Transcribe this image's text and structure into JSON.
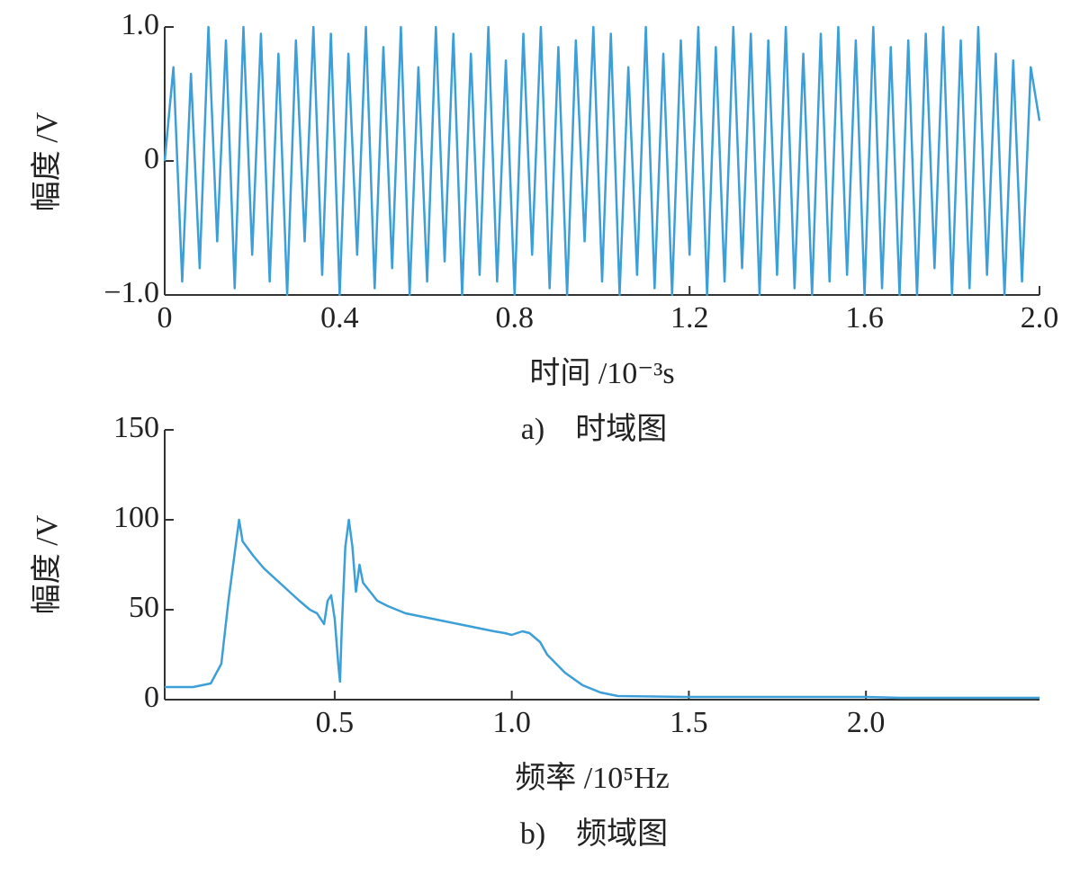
{
  "chart_data": [
    {
      "type": "line",
      "caption": "a)　时域图",
      "x_label": "时间 /10⁻³s",
      "y_label": "幅度 /V",
      "xlim": [
        0,
        2.0
      ],
      "ylim": [
        -1.0,
        1.0
      ],
      "xticks": [
        0,
        0.4,
        0.8,
        1.2,
        1.6,
        {
          "value": 2,
          "label": "2.0"
        }
      ],
      "yticks": [
        {
          "value": -1,
          "label": "−1.0"
        },
        0,
        {
          "value": 1,
          "label": "1.0"
        }
      ],
      "x": [
        0,
        0.02,
        0.04,
        0.06,
        0.08,
        0.1,
        0.12,
        0.14,
        0.16,
        0.18,
        0.2,
        0.22,
        0.24,
        0.26,
        0.28,
        0.3,
        0.32,
        0.34,
        0.36,
        0.38,
        0.4,
        0.42,
        0.44,
        0.46,
        0.48,
        0.5,
        0.52,
        0.54,
        0.56,
        0.58,
        0.6,
        0.62,
        0.64,
        0.66,
        0.68,
        0.7,
        0.72,
        0.74,
        0.76,
        0.78,
        0.8,
        0.82,
        0.84,
        0.86,
        0.88,
        0.9,
        0.92,
        0.94,
        0.96,
        0.98,
        1.0,
        1.02,
        1.04,
        1.06,
        1.08,
        1.1,
        1.12,
        1.14,
        1.16,
        1.18,
        1.2,
        1.22,
        1.24,
        1.26,
        1.28,
        1.3,
        1.32,
        1.34,
        1.36,
        1.38,
        1.4,
        1.42,
        1.44,
        1.46,
        1.48,
        1.5,
        1.52,
        1.54,
        1.56,
        1.58,
        1.6,
        1.62,
        1.64,
        1.66,
        1.68,
        1.7,
        1.72,
        1.74,
        1.76,
        1.78,
        1.8,
        1.82,
        1.84,
        1.86,
        1.88,
        1.9,
        1.92,
        1.94,
        1.96,
        1.98,
        2.0
      ],
      "series": [
        {
          "color": "#3d9fd8",
          "values": [
            0,
            0.7,
            -0.9,
            0.65,
            -0.8,
            1.0,
            -0.6,
            0.9,
            -0.95,
            1.0,
            -0.7,
            0.95,
            -0.9,
            0.8,
            -1.0,
            0.9,
            -0.6,
            1.0,
            -0.85,
            0.95,
            -1.0,
            0.8,
            -0.7,
            1.0,
            -0.95,
            0.85,
            -0.8,
            1.0,
            -1.0,
            0.7,
            -0.9,
            1.0,
            -0.75,
            0.95,
            -1.0,
            0.8,
            -0.85,
            1.0,
            -0.9,
            0.75,
            -1.0,
            0.95,
            -0.7,
            1.0,
            -0.95,
            0.85,
            -1.0,
            0.9,
            -0.6,
            1.0,
            -0.9,
            0.95,
            -1.0,
            0.7,
            -0.85,
            1.0,
            -0.95,
            0.8,
            -1.0,
            0.9,
            -0.7,
            1.0,
            -1.0,
            0.85,
            -0.9,
            1.0,
            -0.8,
            0.95,
            -1.0,
            0.9,
            -0.85,
            1.0,
            -0.95,
            0.8,
            -1.0,
            0.95,
            -0.9,
            1.0,
            -0.85,
            0.9,
            -1.0,
            1.0,
            -0.95,
            0.85,
            -1.0,
            0.9,
            -1.0,
            0.95,
            -0.8,
            1.0,
            -1.0,
            0.9,
            -0.95,
            1.0,
            -0.85,
            0.8,
            -1.0,
            0.75,
            -0.9,
            0.7,
            0.3
          ]
        }
      ]
    },
    {
      "type": "line",
      "caption": "b)　频域图",
      "x_label": "频率 /10⁵Hz",
      "y_label": "幅度 /V",
      "xlim": [
        0.02,
        2.49
      ],
      "ylim": [
        0,
        150
      ],
      "xticks": [
        0.5,
        {
          "value": 1,
          "label": "1.0"
        },
        1.5,
        {
          "value": 2,
          "label": "2.0"
        }
      ],
      "yticks": [
        0,
        50,
        100,
        150
      ],
      "x": [
        0.02,
        0.1,
        0.15,
        0.18,
        0.2,
        0.22,
        0.23,
        0.24,
        0.27,
        0.3,
        0.35,
        0.4,
        0.43,
        0.45,
        0.47,
        0.48,
        0.49,
        0.5,
        0.51,
        0.515,
        0.52,
        0.53,
        0.54,
        0.55,
        0.56,
        0.57,
        0.58,
        0.6,
        0.62,
        0.65,
        0.7,
        0.75,
        0.8,
        0.85,
        0.9,
        0.95,
        0.98,
        1.0,
        1.03,
        1.05,
        1.08,
        1.1,
        1.15,
        1.2,
        1.25,
        1.3,
        1.5,
        2.0,
        2.1,
        2.49
      ],
      "series": [
        {
          "color": "#3d9fd8",
          "values": [
            7,
            7,
            9,
            20,
            55,
            85,
            100,
            88,
            80,
            73,
            64,
            55,
            50,
            48,
            42,
            55,
            58,
            45,
            20,
            10,
            40,
            85,
            100,
            85,
            60,
            75,
            65,
            60,
            55,
            52,
            48,
            46,
            44,
            42,
            40,
            38,
            37,
            36,
            38,
            37,
            32,
            25,
            15,
            8,
            4,
            2,
            1.5,
            1.5,
            1,
            1
          ]
        }
      ]
    }
  ]
}
